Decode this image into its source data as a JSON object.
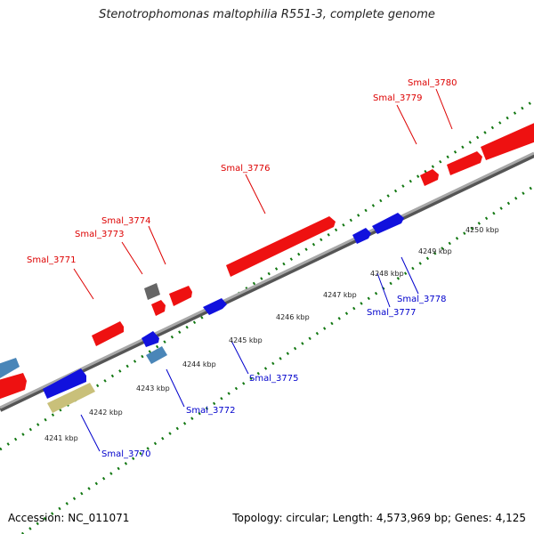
{
  "title": "Stenotrophomonas maltophilia R551-3, complete genome",
  "footer": {
    "accession": "Accession: NC_011071",
    "topology": "Topology: circular; Length: 4,573,969 bp; Genes: 4,125"
  },
  "colors": {
    "forward_gene": "#ee1111",
    "reverse_gene": "#1111dd",
    "rna_blue": "#4a86b8",
    "gray_feature": "#666666",
    "tan_feature": "#c9c07a",
    "backbone": "#888888",
    "tick": "#117711"
  },
  "kbp_labels": [
    {
      "text": "4241 kbp"
    },
    {
      "text": "4242 kbp"
    },
    {
      "text": "4243 kbp"
    },
    {
      "text": "4244 kbp"
    },
    {
      "text": "4245 kbp"
    },
    {
      "text": "4246 kbp"
    },
    {
      "text": "4247 kbp"
    },
    {
      "text": "4248 kbp"
    },
    {
      "text": "4249 kbp"
    },
    {
      "text": "4250 kbp"
    }
  ],
  "gene_labels": [
    {
      "text": "Smal_3771",
      "strand": "forward"
    },
    {
      "text": "Smal_3773",
      "strand": "forward"
    },
    {
      "text": "Smal_3774",
      "strand": "forward"
    },
    {
      "text": "Smal_3776",
      "strand": "forward"
    },
    {
      "text": "Smal_3779",
      "strand": "forward"
    },
    {
      "text": "Smal_3780",
      "strand": "forward"
    },
    {
      "text": "Smal_3770",
      "strand": "reverse"
    },
    {
      "text": "Smal_3772",
      "strand": "reverse"
    },
    {
      "text": "Smal_3775",
      "strand": "reverse"
    },
    {
      "text": "Smal_3777",
      "strand": "reverse"
    },
    {
      "text": "Smal_3778",
      "strand": "reverse"
    }
  ]
}
